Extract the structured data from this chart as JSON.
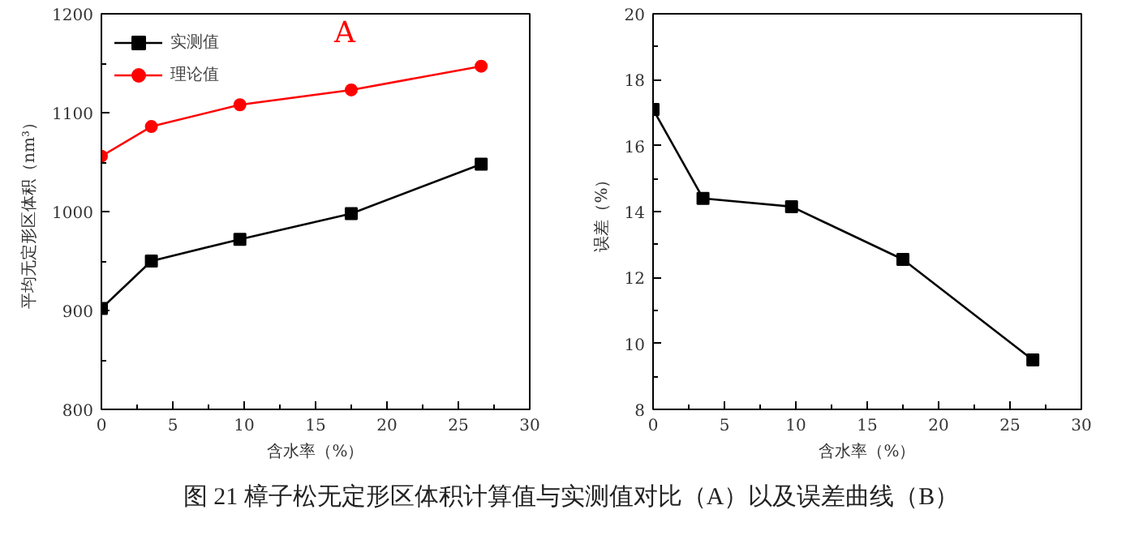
{
  "chart_data": [
    {
      "type": "line",
      "xlabel": "含水率（%）",
      "ylabel": "平均无定形区体积（nm³）",
      "x": [
        0,
        3.5,
        9.7,
        17.5,
        26.6
      ],
      "xlim": [
        0,
        30
      ],
      "xticks": [
        0,
        5,
        10,
        15,
        20,
        25,
        30
      ],
      "ylim": [
        800,
        1200
      ],
      "yticks": [
        800,
        900,
        1000,
        1100,
        1200
      ],
      "grid": false,
      "legend": "top left",
      "series": [
        {
          "name": "实测值",
          "color": "#000000",
          "marker": "square",
          "values": [
            902,
            950,
            972,
            998,
            1048
          ]
        },
        {
          "name": "理论值",
          "color": "#ff0000",
          "marker": "circle",
          "values": [
            1056,
            1086,
            1108,
            1123,
            1147
          ]
        }
      ],
      "annotations": [
        "A"
      ]
    },
    {
      "type": "line",
      "xlabel": "含水率（%）",
      "ylabel": "误差（%）",
      "x": [
        0,
        3.5,
        9.7,
        17.5,
        26.6
      ],
      "xlim": [
        0,
        30
      ],
      "xticks": [
        0,
        5,
        10,
        15,
        20,
        25,
        30
      ],
      "ylim": [
        8,
        20
      ],
      "yticks": [
        8,
        10,
        12,
        14,
        16,
        18,
        20
      ],
      "grid": false,
      "marker": "square",
      "annotations": [
        "图 21  樟子松无定形区体积计算值与实测值对比（A）以及误差曲线（B）"
      ],
      "series": [
        {
          "color": "#000000",
          "values": [
            17.1,
            14.4,
            14.15,
            12.55,
            9.5
          ]
        }
      ]
    }
  ]
}
